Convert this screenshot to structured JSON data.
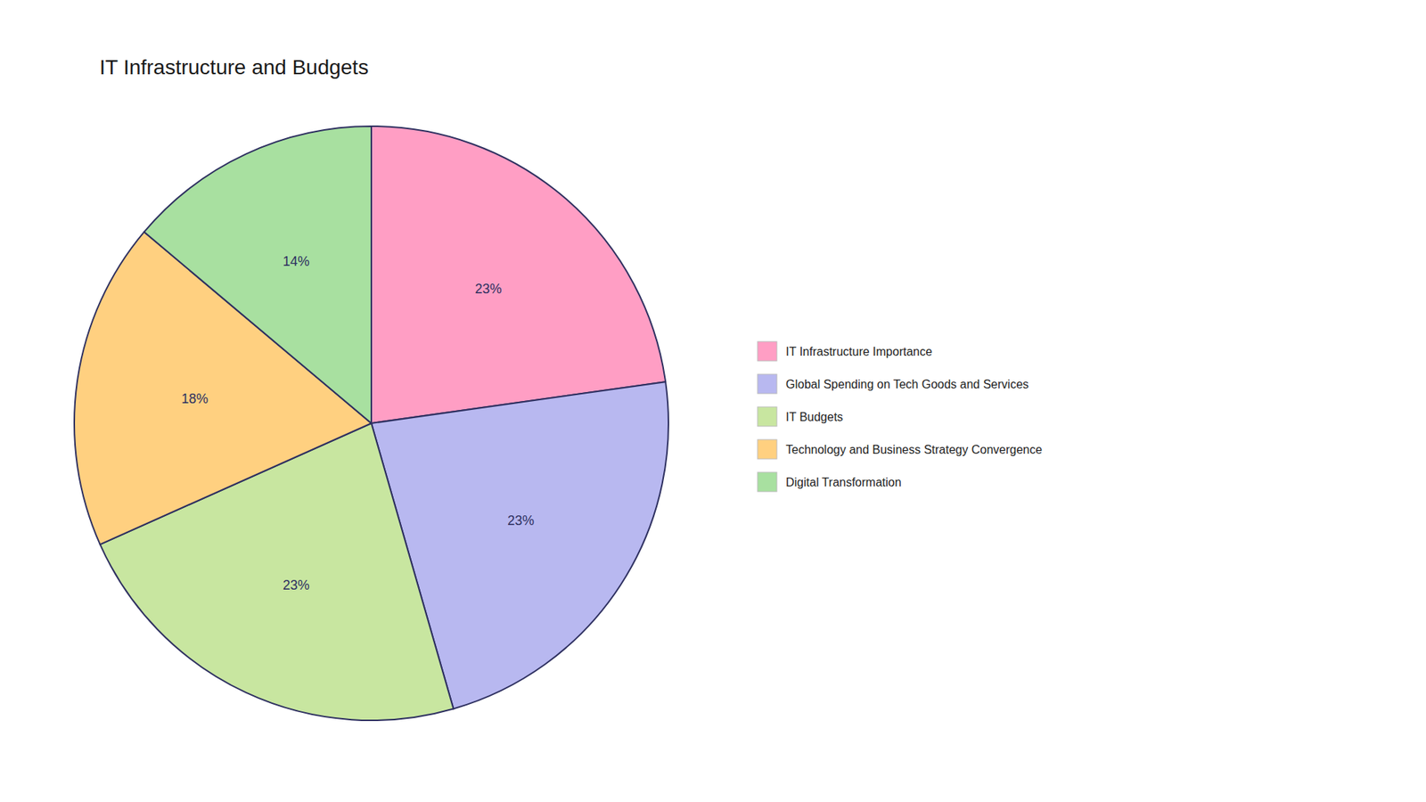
{
  "chart_data": {
    "type": "pie",
    "title": "IT Infrastructure and Budgets",
    "categories": [
      "IT Infrastructure Importance",
      "Global Spending on Tech Goods and Services",
      "IT Budgets",
      "Technology and Business Strategy Convergence",
      "Digital Transformation"
    ],
    "values": [
      23,
      23,
      23,
      18,
      14
    ],
    "value_labels": [
      "23%",
      "23%",
      "23%",
      "18%",
      "14%"
    ],
    "colors": [
      "#FF9EC4",
      "#B8B8F0",
      "#C8E6A0",
      "#FFD080",
      "#A8E0A0"
    ],
    "data_labels": true,
    "legend": "right"
  }
}
